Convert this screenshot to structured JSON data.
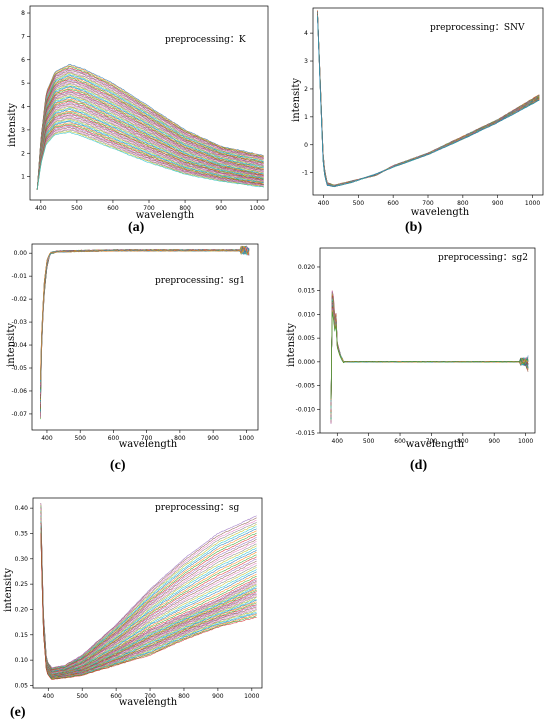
{
  "chart_data": [
    {
      "id": "a",
      "type": "line",
      "caption": "(a)",
      "annotation": "preprocessing：K",
      "xlabel": "wavelength",
      "ylabel": "intensity",
      "xlim": [
        370,
        1030
      ],
      "ylim": [
        0,
        8.3
      ],
      "xticks": [
        "400",
        "500",
        "600",
        "700",
        "800",
        "900",
        "1000"
      ],
      "yticks": [
        "1",
        "2",
        "3",
        "4",
        "5",
        "6",
        "7",
        "8"
      ],
      "series_count": 60,
      "series": [
        {
          "values": [
            [
              390,
              0.45
            ],
            [
              400,
              2.6
            ],
            [
              415,
              4.6
            ],
            [
              440,
              5.5
            ],
            [
              480,
              5.8
            ],
            [
              520,
              5.6
            ],
            [
              600,
              5.0
            ],
            [
              700,
              4.0
            ],
            [
              800,
              3.0
            ],
            [
              900,
              2.3
            ],
            [
              1020,
              1.9
            ]
          ]
        },
        {
          "values": [
            [
              390,
              0.45
            ],
            [
              400,
              2.2
            ],
            [
              415,
              3.6
            ],
            [
              440,
              4.2
            ],
            [
              480,
              4.4
            ],
            [
              520,
              4.2
            ],
            [
              600,
              3.6
            ],
            [
              700,
              2.8
            ],
            [
              800,
              2.0
            ],
            [
              900,
              1.5
            ],
            [
              1020,
              1.1
            ]
          ]
        },
        {
          "values": [
            [
              390,
              0.45
            ],
            [
              400,
              1.5
            ],
            [
              415,
              2.4
            ],
            [
              440,
              2.8
            ],
            [
              480,
              2.9
            ],
            [
              520,
              2.7
            ],
            [
              600,
              2.2
            ],
            [
              700,
              1.6
            ],
            [
              800,
              1.1
            ],
            [
              900,
              0.8
            ],
            [
              1020,
              0.55
            ]
          ]
        }
      ]
    },
    {
      "id": "b",
      "type": "line",
      "caption": "(b)",
      "annotation": "preprocessing：SNV",
      "xlabel": "wavelength",
      "ylabel": "intensity",
      "xlim": [
        370,
        1030
      ],
      "ylim": [
        -1.8,
        4.9
      ],
      "xticks": [
        "400",
        "500",
        "600",
        "700",
        "800",
        "900",
        "1000"
      ],
      "yticks": [
        "-1",
        "0",
        "1",
        "2",
        "3",
        "4"
      ],
      "series_count": 60,
      "series": [
        {
          "values": [
            [
              383,
              4.8
            ],
            [
              392,
              2.0
            ],
            [
              400,
              -0.6
            ],
            [
              410,
              -1.35
            ],
            [
              430,
              -1.45
            ],
            [
              480,
              -1.3
            ],
            [
              550,
              -1.1
            ],
            [
              600,
              -0.75
            ],
            [
              700,
              -0.3
            ],
            [
              800,
              0.3
            ],
            [
              900,
              0.9
            ],
            [
              1020,
              1.8
            ]
          ]
        },
        {
          "values": [
            [
              383,
              4.6
            ],
            [
              392,
              1.6
            ],
            [
              400,
              -0.9
            ],
            [
              410,
              -1.45
            ],
            [
              430,
              -1.5
            ],
            [
              480,
              -1.35
            ],
            [
              550,
              -1.05
            ],
            [
              600,
              -0.8
            ],
            [
              700,
              -0.35
            ],
            [
              800,
              0.2
            ],
            [
              900,
              0.8
            ],
            [
              1020,
              1.6
            ]
          ]
        }
      ]
    },
    {
      "id": "c",
      "type": "line",
      "caption": "(c)",
      "annotation": "preprocessing：sg1",
      "xlabel": "wavelength",
      "ylabel": "intensity",
      "xlim": [
        355,
        1035
      ],
      "ylim": [
        -0.077,
        0.004
      ],
      "xticks": [
        "400",
        "500",
        "600",
        "700",
        "800",
        "900",
        "1000"
      ],
      "yticks": [
        "0.00",
        "-0.01",
        "-0.02",
        "-0.03",
        "-0.04",
        "-0.05",
        "-0.06",
        "-0.07"
      ],
      "series_count": 40,
      "series": [
        {
          "values": [
            [
              380,
              -0.072
            ],
            [
              385,
              -0.035
            ],
            [
              392,
              -0.018
            ],
            [
              400,
              -0.006
            ],
            [
              410,
              0.0
            ],
            [
              430,
              0.001
            ],
            [
              600,
              0.0015
            ],
            [
              800,
              0.0015
            ],
            [
              1000,
              0.0015
            ],
            [
              1010,
              0.0008
            ]
          ]
        },
        {
          "values": [
            [
              380,
              -0.055
            ],
            [
              385,
              -0.03
            ],
            [
              392,
              -0.012
            ],
            [
              400,
              -0.003
            ],
            [
              410,
              0.0
            ],
            [
              430,
              0.0005
            ],
            [
              600,
              0.001
            ],
            [
              800,
              0.001
            ],
            [
              1000,
              0.001
            ],
            [
              1010,
              0.0
            ]
          ]
        }
      ]
    },
    {
      "id": "d",
      "type": "line",
      "caption": "(d)",
      "annotation": "preprocessing：sg2",
      "xlabel": "wavelength",
      "ylabel": "intensity",
      "xlim": [
        345,
        1030
      ],
      "ylim": [
        -0.015,
        0.024
      ],
      "xticks": [
        "400",
        "500",
        "600",
        "700",
        "800",
        "900",
        "1000"
      ],
      "yticks": [
        "0.020",
        "0.015",
        "0.010",
        "0.005",
        "0.000",
        "-0.005",
        "-0.010",
        "-0.015"
      ],
      "series_count": 40,
      "series": [
        {
          "values": [
            [
              380,
              -0.013
            ],
            [
              385,
              0.022
            ],
            [
              390,
              0.008
            ],
            [
              395,
              0.012
            ],
            [
              400,
              0.004
            ],
            [
              410,
              0.0015
            ],
            [
              420,
              0.0
            ],
            [
              1000,
              0.0
            ],
            [
              1010,
              -0.002
            ]
          ]
        },
        {
          "values": [
            [
              380,
              -0.008
            ],
            [
              385,
              0.015
            ],
            [
              390,
              0.005
            ],
            [
              395,
              0.009
            ],
            [
              400,
              0.003
            ],
            [
              410,
              0.001
            ],
            [
              420,
              0.0
            ],
            [
              1000,
              0.0
            ],
            [
              1010,
              0.001
            ]
          ]
        }
      ]
    },
    {
      "id": "e",
      "type": "line",
      "caption": "(e)",
      "annotation": "preprocessing：sg",
      "xlabel": "wavelength",
      "ylabel": "intensity",
      "xlim": [
        355,
        1030
      ],
      "ylim": [
        0.045,
        0.42
      ],
      "xticks": [
        "400",
        "500",
        "600",
        "700",
        "800",
        "900",
        "1000"
      ],
      "yticks": [
        "0.05",
        "0.10",
        "0.15",
        "0.20",
        "0.25",
        "0.30",
        "0.35",
        "0.40"
      ],
      "series_count": 60,
      "series": [
        {
          "values": [
            [
              378,
              0.41
            ],
            [
              385,
              0.2
            ],
            [
              395,
              0.1
            ],
            [
              410,
              0.085
            ],
            [
              450,
              0.09
            ],
            [
              500,
              0.11
            ],
            [
              600,
              0.17
            ],
            [
              700,
              0.24
            ],
            [
              800,
              0.3
            ],
            [
              900,
              0.35
            ],
            [
              1015,
              0.385
            ]
          ]
        },
        {
          "values": [
            [
              378,
              0.38
            ],
            [
              385,
              0.18
            ],
            [
              395,
              0.085
            ],
            [
              410,
              0.07
            ],
            [
              450,
              0.075
            ],
            [
              500,
              0.085
            ],
            [
              600,
              0.12
            ],
            [
              700,
              0.16
            ],
            [
              800,
              0.19
            ],
            [
              900,
              0.22
            ],
            [
              1015,
              0.26
            ]
          ]
        },
        {
          "values": [
            [
              378,
              0.35
            ],
            [
              385,
              0.16
            ],
            [
              395,
              0.075
            ],
            [
              410,
              0.062
            ],
            [
              450,
              0.065
            ],
            [
              500,
              0.07
            ],
            [
              600,
              0.09
            ],
            [
              700,
              0.11
            ],
            [
              800,
              0.14
            ],
            [
              900,
              0.165
            ],
            [
              1015,
              0.185
            ]
          ]
        }
      ]
    }
  ]
}
